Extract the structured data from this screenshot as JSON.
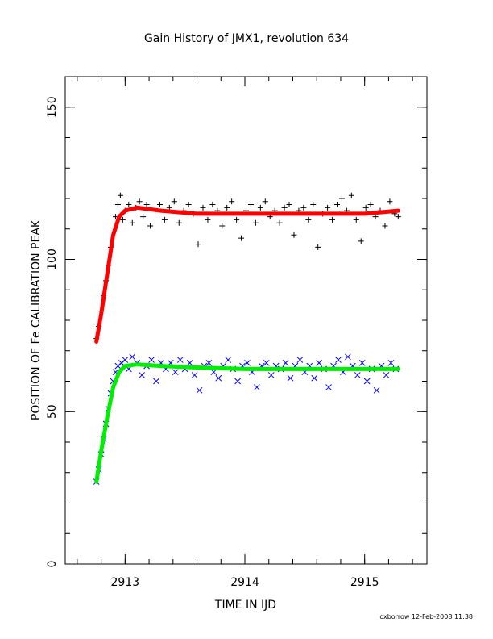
{
  "chart_data": {
    "type": "scatter",
    "title": "Gain History of JMX1, revolution 634",
    "xlabel": "TIME IN IJD",
    "ylabel": "POSITION OF Fe CALIBRATION PEAK",
    "footer": "oxborrow 12-Feb-2008 11:38",
    "xlim": [
      2912.5,
      2915.52
    ],
    "ylim": [
      0,
      160
    ],
    "x_ticks": [
      {
        "value": 2913,
        "label": "2913"
      },
      {
        "value": 2914,
        "label": "2914"
      },
      {
        "value": 2915,
        "label": "2915"
      }
    ],
    "y_ticks": [
      {
        "value": 0,
        "label": "0"
      },
      {
        "value": 50,
        "label": "50"
      },
      {
        "value": 100,
        "label": "100"
      },
      {
        "value": 150,
        "label": "150"
      }
    ],
    "x_minor_step": 0.2,
    "y_minor_step": 10,
    "colors": {
      "upper_points": "#000000",
      "upper_fit": "#ff0000",
      "lower_points": "#0000ff",
      "lower_fit": "#00ee00"
    },
    "series": [
      {
        "marker": "plus",
        "color": "#000000",
        "points": [
          [
            2912.76,
            74
          ],
          [
            2912.78,
            78
          ],
          [
            2912.8,
            83
          ],
          [
            2912.82,
            88
          ],
          [
            2912.84,
            93
          ],
          [
            2912.86,
            98
          ],
          [
            2912.88,
            104
          ],
          [
            2912.9,
            109
          ],
          [
            2912.92,
            114
          ],
          [
            2912.94,
            118
          ],
          [
            2912.96,
            121
          ],
          [
            2912.98,
            113
          ],
          [
            2913.0,
            116
          ],
          [
            2913.03,
            118
          ],
          [
            2913.06,
            112
          ],
          [
            2913.09,
            117
          ],
          [
            2913.12,
            119
          ],
          [
            2913.15,
            114
          ],
          [
            2913.18,
            118
          ],
          [
            2913.21,
            111
          ],
          [
            2913.25,
            116
          ],
          [
            2913.29,
            118
          ],
          [
            2913.33,
            113
          ],
          [
            2913.37,
            117
          ],
          [
            2913.41,
            119
          ],
          [
            2913.45,
            112
          ],
          [
            2913.49,
            116
          ],
          [
            2913.53,
            118
          ],
          [
            2913.57,
            115
          ],
          [
            2913.61,
            105
          ],
          [
            2913.65,
            117
          ],
          [
            2913.69,
            113
          ],
          [
            2913.73,
            118
          ],
          [
            2913.77,
            116
          ],
          [
            2913.81,
            111
          ],
          [
            2913.85,
            117
          ],
          [
            2913.89,
            119
          ],
          [
            2913.93,
            113
          ],
          [
            2913.97,
            107
          ],
          [
            2914.01,
            116
          ],
          [
            2914.05,
            118
          ],
          [
            2914.09,
            112
          ],
          [
            2914.13,
            117
          ],
          [
            2914.17,
            119
          ],
          [
            2914.21,
            114
          ],
          [
            2914.25,
            116
          ],
          [
            2914.29,
            112
          ],
          [
            2914.33,
            117
          ],
          [
            2914.37,
            118
          ],
          [
            2914.41,
            108
          ],
          [
            2914.45,
            116
          ],
          [
            2914.49,
            117
          ],
          [
            2914.53,
            113
          ],
          [
            2914.57,
            118
          ],
          [
            2914.61,
            104
          ],
          [
            2914.65,
            115
          ],
          [
            2914.69,
            117
          ],
          [
            2914.73,
            113
          ],
          [
            2914.77,
            118
          ],
          [
            2914.81,
            120
          ],
          [
            2914.85,
            116
          ],
          [
            2914.89,
            121
          ],
          [
            2914.93,
            113
          ],
          [
            2914.97,
            106
          ],
          [
            2915.01,
            117
          ],
          [
            2915.05,
            118
          ],
          [
            2915.09,
            114
          ],
          [
            2915.13,
            116
          ],
          [
            2915.17,
            111
          ],
          [
            2915.21,
            119
          ],
          [
            2915.25,
            115
          ],
          [
            2915.28,
            114
          ]
        ]
      },
      {
        "marker": "line",
        "color": "#ff0000",
        "points": [
          [
            2912.76,
            73
          ],
          [
            2912.8,
            82
          ],
          [
            2912.85,
            95
          ],
          [
            2912.9,
            108
          ],
          [
            2912.95,
            114
          ],
          [
            2913.0,
            116
          ],
          [
            2913.1,
            117
          ],
          [
            2913.3,
            116
          ],
          [
            2913.6,
            115
          ],
          [
            2914.0,
            115
          ],
          [
            2914.4,
            115
          ],
          [
            2914.8,
            115
          ],
          [
            2915.0,
            115
          ],
          [
            2915.28,
            116
          ]
        ]
      },
      {
        "marker": "cross",
        "color": "#0000ff",
        "points": [
          [
            2912.76,
            27
          ],
          [
            2912.78,
            31
          ],
          [
            2912.8,
            36
          ],
          [
            2912.82,
            41
          ],
          [
            2912.84,
            46
          ],
          [
            2912.86,
            51
          ],
          [
            2912.88,
            56
          ],
          [
            2912.9,
            60
          ],
          [
            2912.92,
            63
          ],
          [
            2912.94,
            65
          ],
          [
            2912.97,
            66
          ],
          [
            2913.0,
            67
          ],
          [
            2913.03,
            64
          ],
          [
            2913.06,
            68
          ],
          [
            2913.1,
            66
          ],
          [
            2913.14,
            62
          ],
          [
            2913.18,
            65
          ],
          [
            2913.22,
            67
          ],
          [
            2913.26,
            60
          ],
          [
            2913.3,
            66
          ],
          [
            2913.34,
            64
          ],
          [
            2913.38,
            66
          ],
          [
            2913.42,
            63
          ],
          [
            2913.46,
            67
          ],
          [
            2913.5,
            64
          ],
          [
            2913.54,
            66
          ],
          [
            2913.58,
            62
          ],
          [
            2913.62,
            57
          ],
          [
            2913.66,
            65
          ],
          [
            2913.7,
            66
          ],
          [
            2913.74,
            63
          ],
          [
            2913.78,
            61
          ],
          [
            2913.82,
            65
          ],
          [
            2913.86,
            67
          ],
          [
            2913.9,
            64
          ],
          [
            2913.94,
            60
          ],
          [
            2913.98,
            65
          ],
          [
            2914.02,
            66
          ],
          [
            2914.06,
            63
          ],
          [
            2914.1,
            58
          ],
          [
            2914.14,
            65
          ],
          [
            2914.18,
            66
          ],
          [
            2914.22,
            62
          ],
          [
            2914.26,
            65
          ],
          [
            2914.3,
            64
          ],
          [
            2914.34,
            66
          ],
          [
            2914.38,
            61
          ],
          [
            2914.42,
            65
          ],
          [
            2914.46,
            67
          ],
          [
            2914.5,
            63
          ],
          [
            2914.54,
            65
          ],
          [
            2914.58,
            61
          ],
          [
            2914.62,
            66
          ],
          [
            2914.66,
            64
          ],
          [
            2914.7,
            58
          ],
          [
            2914.74,
            65
          ],
          [
            2914.78,
            67
          ],
          [
            2914.82,
            63
          ],
          [
            2914.86,
            68
          ],
          [
            2914.9,
            65
          ],
          [
            2914.94,
            62
          ],
          [
            2914.98,
            66
          ],
          [
            2915.02,
            60
          ],
          [
            2915.06,
            64
          ],
          [
            2915.1,
            57
          ],
          [
            2915.14,
            65
          ],
          [
            2915.18,
            62
          ],
          [
            2915.22,
            66
          ],
          [
            2915.26,
            64
          ]
        ]
      },
      {
        "marker": "line",
        "color": "#00ee00",
        "points": [
          [
            2912.76,
            27
          ],
          [
            2912.8,
            37
          ],
          [
            2912.85,
            48
          ],
          [
            2912.9,
            58
          ],
          [
            2912.95,
            63
          ],
          [
            2913.0,
            65
          ],
          [
            2913.1,
            65.5
          ],
          [
            2913.3,
            65
          ],
          [
            2913.6,
            64.5
          ],
          [
            2914.0,
            64
          ],
          [
            2914.4,
            64
          ],
          [
            2914.8,
            64
          ],
          [
            2915.0,
            64
          ],
          [
            2915.28,
            64
          ]
        ]
      }
    ]
  }
}
